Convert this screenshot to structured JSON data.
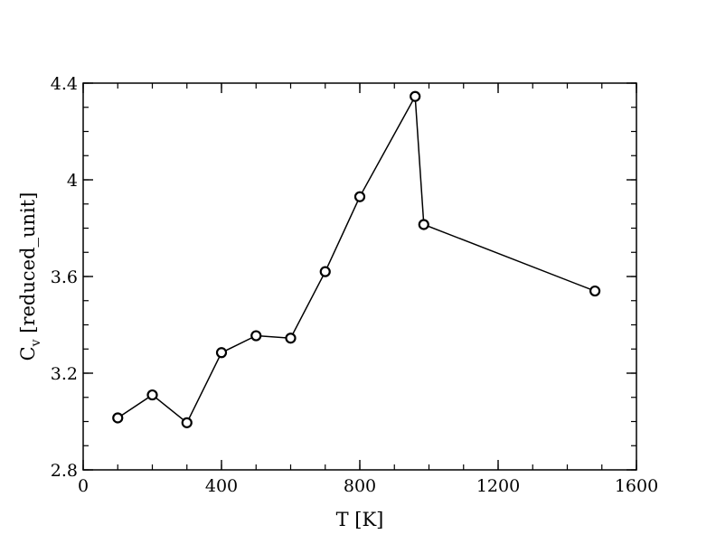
{
  "chart_data": {
    "type": "line",
    "title": "",
    "xlabel": "T [K]",
    "ylabel_main": "C",
    "ylabel_sub": "v",
    "ylabel_rest": " [reduced_unit]",
    "xlim": [
      0,
      1600
    ],
    "ylim": [
      2.8,
      4.4
    ],
    "xticks": [
      0,
      400,
      800,
      1200,
      1600
    ],
    "xtick_labels": [
      "0",
      "400",
      "800",
      "1200",
      "1600"
    ],
    "yticks": [
      2.8,
      3.2,
      3.6,
      4.0,
      4.4
    ],
    "ytick_labels": [
      "2.8",
      "3.2",
      "3.6",
      "4",
      "4.4"
    ],
    "x_minor_step": 100,
    "y_minor_step": 0.1,
    "grid": false,
    "series": [
      {
        "marker": "circle",
        "color": "#000000",
        "x": [
          100,
          200,
          300,
          400,
          500,
          600,
          700,
          800,
          960,
          985,
          1480
        ],
        "y": [
          3.015,
          3.11,
          2.995,
          3.285,
          3.355,
          3.345,
          3.62,
          3.93,
          4.345,
          3.815,
          3.54
        ]
      }
    ]
  }
}
